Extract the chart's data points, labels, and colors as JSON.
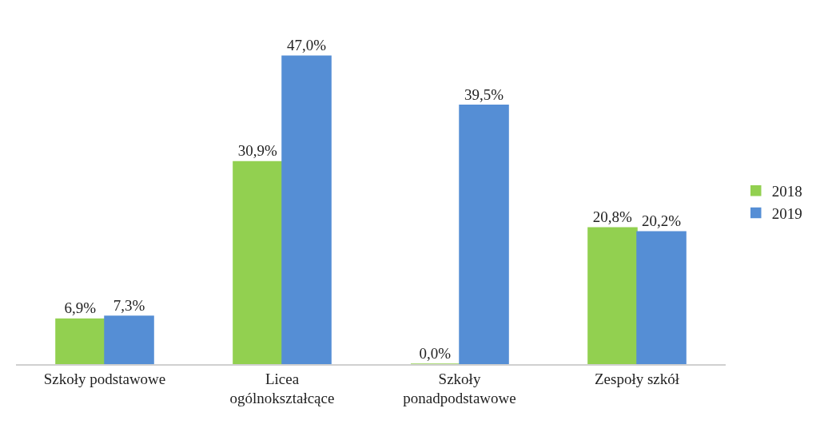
{
  "chart_data": {
    "type": "bar",
    "categories": [
      "Szkoły podstawowe",
      "Licea\nogólnokształcące",
      "Szkoły\nponadpodstawowe",
      "Zespoły szkół"
    ],
    "series": [
      {
        "name": "2018",
        "color": "#92d050",
        "values": [
          6.9,
          30.9,
          0.0,
          20.8
        ],
        "value_labels": [
          "6,9%",
          "30,9%",
          "0,0%",
          "20,8%"
        ]
      },
      {
        "name": "2019",
        "color": "#558ed5",
        "values": [
          7.3,
          47.0,
          39.5,
          20.2
        ],
        "value_labels": [
          "7,3%",
          "47,0%",
          "39,5%",
          "20,2%"
        ]
      }
    ],
    "legend": "right",
    "grid": false
  }
}
